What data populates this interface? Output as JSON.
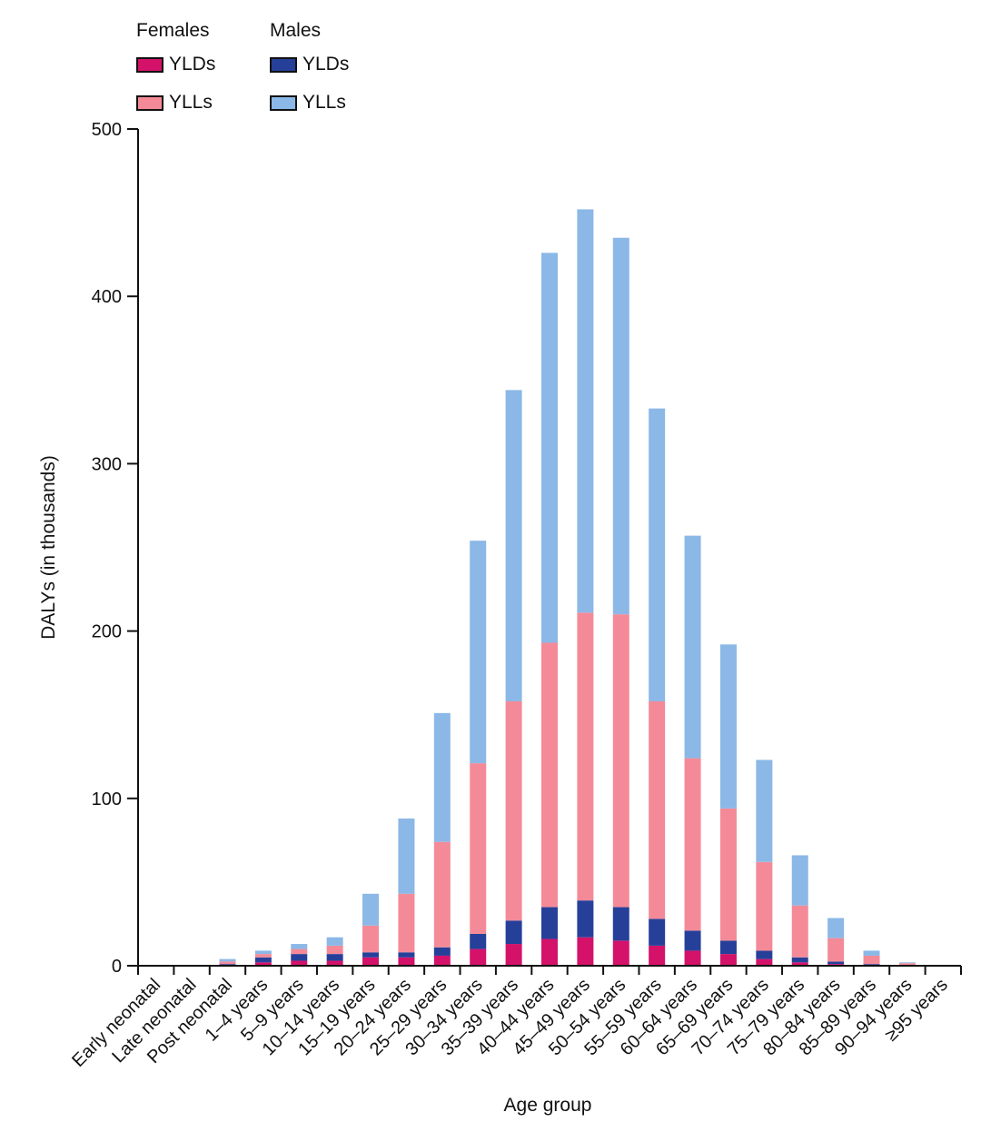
{
  "legend": {
    "females_title": "Females",
    "males_title": "Males",
    "items": [
      {
        "label": "YLDs",
        "color": "#d4126a"
      },
      {
        "label": "YLLs",
        "color": "#f48a98"
      },
      {
        "label": "YLDs",
        "color": "#26409a"
      },
      {
        "label": "YLLs",
        "color": "#8bb8e6"
      }
    ]
  },
  "chart_data": {
    "type": "bar",
    "stacked": true,
    "xlabel": "Age group",
    "ylabel": "DALYs (in thousands)",
    "ylim": [
      0,
      500
    ],
    "yticks": [
      0,
      100,
      200,
      300,
      400,
      500
    ],
    "categories": [
      "Early neonatal",
      "Late neonatal",
      "Post neonatal",
      "1–4 years",
      "5–9 years",
      "10–14 years",
      "15–19 years",
      "20–24 years",
      "25–29 years",
      "30–34 years",
      "35–39 years",
      "40–44 years",
      "45–49 years",
      "50–54 years",
      "55–59 years",
      "60–64 years",
      "65–69 years",
      "70–74 years",
      "75–79 years",
      "80–84 years",
      "85–89 years",
      "90–94 years",
      "≥95 years"
    ],
    "series": [
      {
        "name": "Females YLDs",
        "color": "#d4126a",
        "values": [
          0,
          0,
          0.5,
          2,
          3,
          3,
          5,
          5,
          6,
          10,
          13,
          16,
          17,
          15,
          12,
          9,
          7,
          4,
          2,
          1,
          0.5,
          0,
          0
        ]
      },
      {
        "name": "Males YLDs",
        "color": "#26409a",
        "values": [
          0,
          0,
          0.5,
          3,
          4,
          4,
          3,
          3,
          5,
          9,
          14,
          19,
          22,
          20,
          16,
          12,
          8,
          5,
          3,
          1.5,
          0.5,
          0,
          0
        ]
      },
      {
        "name": "Females YLLs",
        "color": "#f48a98",
        "values": [
          0,
          0,
          1.5,
          2,
          3,
          5,
          16,
          35,
          63,
          102,
          131,
          158,
          172,
          175,
          130,
          103,
          79,
          53,
          31,
          14,
          5,
          1.5,
          0
        ]
      },
      {
        "name": "Males YLLs",
        "color": "#8bb8e6",
        "values": [
          0,
          0,
          1.5,
          2,
          3,
          5,
          19,
          45,
          77,
          133,
          186,
          233,
          241,
          225,
          175,
          133,
          98,
          61,
          30,
          12,
          3,
          0.5,
          0
        ]
      }
    ]
  }
}
